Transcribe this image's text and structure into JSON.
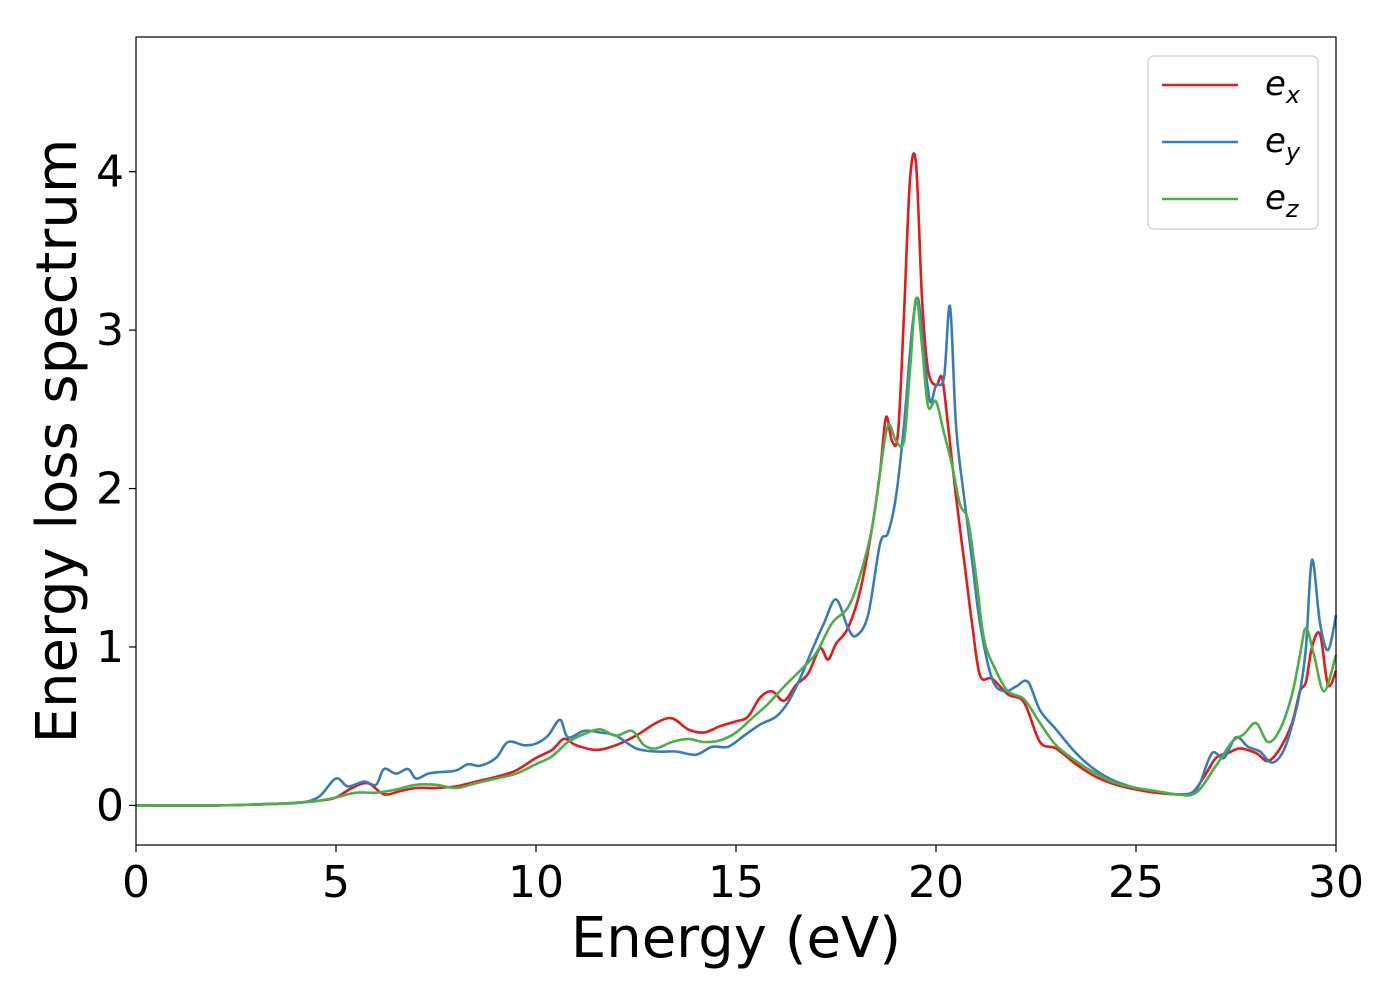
{
  "chart_data": {
    "type": "line",
    "title": "",
    "xlabel": "Energy (eV)",
    "ylabel": "Energy loss spectrum",
    "xlim": [
      0,
      30
    ],
    "ylim": [
      -0.25,
      4.85
    ],
    "xticks": [
      0,
      5,
      10,
      15,
      20,
      25,
      30
    ],
    "yticks": [
      0,
      1,
      2,
      3,
      4
    ],
    "xtick_labels": [
      "0",
      "5",
      "10",
      "15",
      "20",
      "25",
      "30"
    ],
    "ytick_labels": [
      "0",
      "1",
      "2",
      "3",
      "4"
    ],
    "grid": false,
    "legend_position": "top-right",
    "series": [
      {
        "name": "e_x",
        "legend_base": "e",
        "legend_sub": "x",
        "color": "#e41a1c",
        "x": [
          0,
          2,
          3.5,
          4.2,
          4.6,
          5.0,
          5.4,
          5.8,
          6.2,
          6.6,
          7.0,
          7.5,
          8.0,
          8.5,
          9.0,
          9.5,
          10.0,
          10.4,
          10.7,
          11.0,
          11.5,
          12.0,
          12.5,
          13.0,
          13.4,
          13.8,
          14.2,
          14.6,
          15.0,
          15.3,
          15.6,
          15.9,
          16.2,
          16.5,
          16.8,
          17.1,
          17.3,
          17.5,
          17.8,
          18.1,
          18.4,
          18.6,
          18.75,
          18.9,
          19.05,
          19.2,
          19.35,
          19.5,
          19.65,
          19.8,
          20.0,
          20.15,
          20.3,
          20.5,
          20.7,
          20.9,
          21.1,
          21.4,
          21.8,
          22.2,
          22.6,
          23.0,
          23.5,
          24.0,
          24.5,
          25.0,
          25.5,
          26.0,
          26.4,
          26.7,
          27.0,
          27.3,
          27.6,
          28.0,
          28.3,
          28.6,
          28.9,
          29.1,
          29.25,
          29.4,
          29.6,
          29.8,
          30.0
        ],
        "y": [
          0,
          0,
          0.01,
          0.02,
          0.03,
          0.05,
          0.11,
          0.14,
          0.07,
          0.09,
          0.11,
          0.11,
          0.12,
          0.15,
          0.18,
          0.22,
          0.3,
          0.35,
          0.42,
          0.38,
          0.35,
          0.38,
          0.44,
          0.52,
          0.55,
          0.48,
          0.46,
          0.5,
          0.53,
          0.56,
          0.68,
          0.72,
          0.66,
          0.76,
          0.83,
          0.99,
          0.92,
          1.02,
          1.12,
          1.35,
          1.75,
          2.1,
          2.45,
          2.3,
          2.35,
          3.1,
          3.95,
          4.05,
          3.2,
          2.75,
          2.65,
          2.7,
          2.4,
          1.95,
          1.55,
          1.15,
          0.82,
          0.8,
          0.7,
          0.65,
          0.4,
          0.36,
          0.26,
          0.18,
          0.13,
          0.1,
          0.08,
          0.07,
          0.08,
          0.18,
          0.3,
          0.33,
          0.36,
          0.33,
          0.28,
          0.36,
          0.52,
          0.72,
          0.78,
          1.0,
          1.08,
          0.76,
          0.85
        ]
      },
      {
        "name": "e_y",
        "legend_base": "e",
        "legend_sub": "y",
        "color": "#377eb8",
        "x": [
          0,
          2,
          3.5,
          4.2,
          4.6,
          5.0,
          5.3,
          5.7,
          6.0,
          6.2,
          6.5,
          6.8,
          7.0,
          7.3,
          7.6,
          8.0,
          8.3,
          8.6,
          9.0,
          9.3,
          9.7,
          10.0,
          10.3,
          10.6,
          10.8,
          11.2,
          11.6,
          12.0,
          12.5,
          13.0,
          13.5,
          14.0,
          14.4,
          14.8,
          15.2,
          15.6,
          16.0,
          16.3,
          16.6,
          16.9,
          17.2,
          17.5,
          17.8,
          18.0,
          18.3,
          18.6,
          18.8,
          19.0,
          19.2,
          19.4,
          19.55,
          19.7,
          19.85,
          20.0,
          20.2,
          20.35,
          20.5,
          20.7,
          20.9,
          21.1,
          21.4,
          21.7,
          22.0,
          22.3,
          22.6,
          23.0,
          23.5,
          24.0,
          24.5,
          25.0,
          25.5,
          26.0,
          26.4,
          26.6,
          26.9,
          27.2,
          27.5,
          27.8,
          28.1,
          28.4,
          28.7,
          28.95,
          29.1,
          29.25,
          29.4,
          29.6,
          29.8,
          30.0
        ],
        "y": [
          0,
          0,
          0.01,
          0.02,
          0.06,
          0.17,
          0.12,
          0.15,
          0.13,
          0.23,
          0.2,
          0.23,
          0.17,
          0.2,
          0.21,
          0.22,
          0.26,
          0.25,
          0.3,
          0.4,
          0.38,
          0.39,
          0.44,
          0.54,
          0.43,
          0.47,
          0.46,
          0.44,
          0.36,
          0.34,
          0.34,
          0.32,
          0.37,
          0.37,
          0.44,
          0.51,
          0.56,
          0.65,
          0.8,
          0.98,
          1.15,
          1.3,
          1.12,
          1.07,
          1.2,
          1.65,
          1.72,
          1.95,
          2.4,
          3.0,
          3.2,
          2.85,
          2.55,
          2.65,
          2.7,
          3.15,
          2.4,
          1.95,
          1.55,
          1.15,
          0.8,
          0.72,
          0.75,
          0.78,
          0.6,
          0.48,
          0.33,
          0.22,
          0.15,
          0.11,
          0.09,
          0.07,
          0.08,
          0.14,
          0.33,
          0.3,
          0.43,
          0.37,
          0.34,
          0.27,
          0.35,
          0.55,
          0.72,
          1.0,
          1.55,
          1.15,
          0.98,
          1.2
        ]
      },
      {
        "name": "e_z",
        "legend_base": "e",
        "legend_sub": "z",
        "color": "#4daf4a",
        "x": [
          0,
          2,
          3.5,
          4.2,
          4.6,
          5.0,
          5.5,
          6.0,
          6.5,
          7.0,
          7.5,
          8.0,
          8.5,
          9.0,
          9.5,
          10.0,
          10.4,
          10.8,
          11.2,
          11.6,
          12.0,
          12.4,
          12.7,
          13.0,
          13.4,
          13.8,
          14.2,
          14.6,
          15.0,
          15.4,
          15.8,
          16.2,
          16.6,
          17.0,
          17.4,
          17.8,
          18.1,
          18.4,
          18.6,
          18.8,
          19.0,
          19.2,
          19.35,
          19.5,
          19.65,
          19.8,
          20.0,
          20.2,
          20.4,
          20.6,
          20.8,
          21.0,
          21.2,
          21.5,
          21.8,
          22.2,
          22.6,
          23.0,
          23.5,
          24.0,
          24.5,
          25.0,
          25.5,
          26.0,
          26.5,
          27.0,
          27.4,
          27.7,
          28.0,
          28.3,
          28.6,
          28.9,
          29.1,
          29.25,
          29.45,
          29.7,
          30.0
        ],
        "y": [
          0,
          0,
          0.01,
          0.02,
          0.03,
          0.05,
          0.08,
          0.08,
          0.1,
          0.13,
          0.13,
          0.11,
          0.14,
          0.17,
          0.2,
          0.26,
          0.31,
          0.4,
          0.45,
          0.48,
          0.44,
          0.47,
          0.38,
          0.36,
          0.4,
          0.42,
          0.4,
          0.41,
          0.46,
          0.55,
          0.64,
          0.75,
          0.85,
          0.96,
          1.15,
          1.25,
          1.45,
          1.75,
          2.1,
          2.4,
          2.3,
          2.3,
          2.75,
          3.2,
          2.9,
          2.52,
          2.55,
          2.35,
          2.15,
          1.9,
          1.8,
          1.45,
          1.05,
          0.85,
          0.72,
          0.67,
          0.52,
          0.38,
          0.28,
          0.2,
          0.14,
          0.11,
          0.09,
          0.07,
          0.08,
          0.25,
          0.4,
          0.45,
          0.52,
          0.4,
          0.48,
          0.7,
          0.95,
          1.12,
          0.95,
          0.72,
          0.95
        ]
      }
    ]
  }
}
